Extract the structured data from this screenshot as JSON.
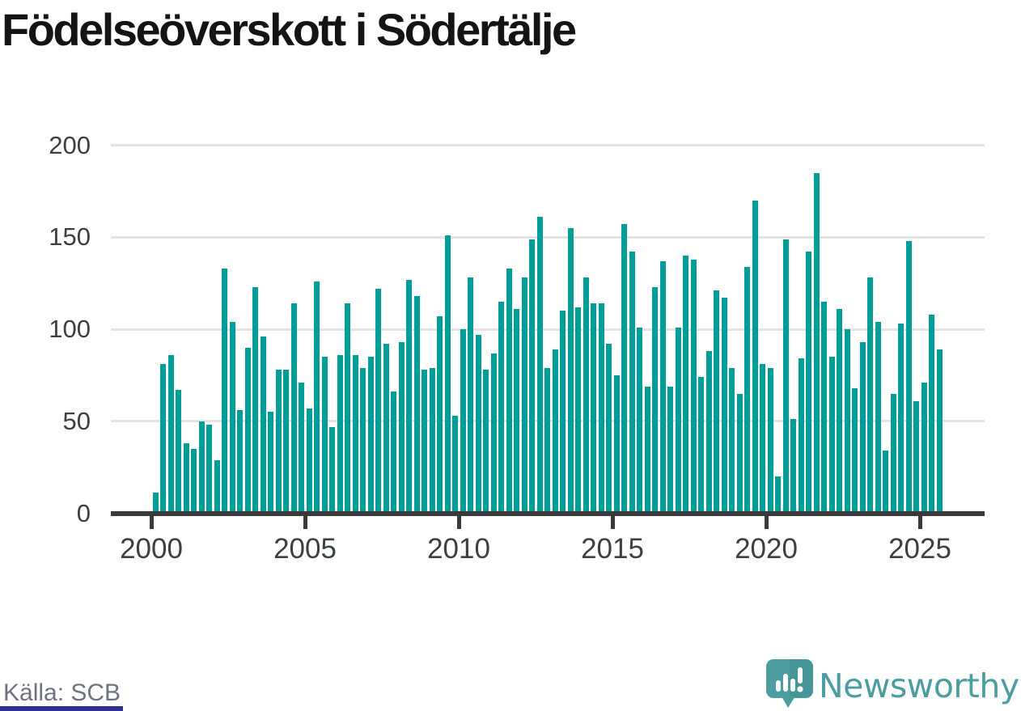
{
  "header": {
    "title": "Födelseöverskott i Södertälje"
  },
  "footer": {
    "source": "Källa: SCB",
    "brand": "Newsworthy"
  },
  "colors": {
    "bar": "#009e98",
    "grid": "#e3e3e3",
    "axis": "#3a3a3a",
    "title_text": "#141414",
    "tick_text": "#3c4043",
    "source_text": "#6f7280",
    "brand_teal": "#4a9da0",
    "accent_bar": "#2e3192"
  },
  "chart_data": {
    "type": "bar",
    "title": "Födelseöverskott i Södertälje",
    "source": "Källa: SCB",
    "frequency": "quarterly",
    "start_period": "2000Q1",
    "end_period": "2025Q3",
    "xlabel": "",
    "ylabel": "",
    "ylim": [
      0,
      200
    ],
    "y_ticks": [
      0,
      50,
      100,
      150,
      200
    ],
    "x_tick_labels": [
      "2000",
      "2005",
      "2010",
      "2015",
      "2020",
      "2025"
    ],
    "grid": "horizontal",
    "legend": "none",
    "bar_color": "#009e98",
    "values": [
      11,
      81,
      86,
      67,
      38,
      35,
      50,
      48,
      29,
      133,
      104,
      56,
      90,
      123,
      96,
      55,
      78,
      78,
      114,
      71,
      57,
      126,
      85,
      47,
      86,
      114,
      86,
      79,
      85,
      122,
      92,
      66,
      93,
      127,
      118,
      78,
      79,
      107,
      151,
      53,
      100,
      128,
      97,
      78,
      87,
      115,
      133,
      111,
      128,
      149,
      161,
      79,
      89,
      110,
      155,
      112,
      128,
      114,
      114,
      92,
      75,
      157,
      142,
      101,
      69,
      123,
      137,
      69,
      101,
      140,
      138,
      74,
      88,
      121,
      117,
      79,
      65,
      134,
      170,
      81,
      79,
      20,
      149,
      51,
      84,
      142,
      185,
      115,
      85,
      111,
      100,
      68,
      93,
      128,
      104,
      34,
      65,
      103,
      148,
      61,
      71,
      108,
      89
    ]
  }
}
